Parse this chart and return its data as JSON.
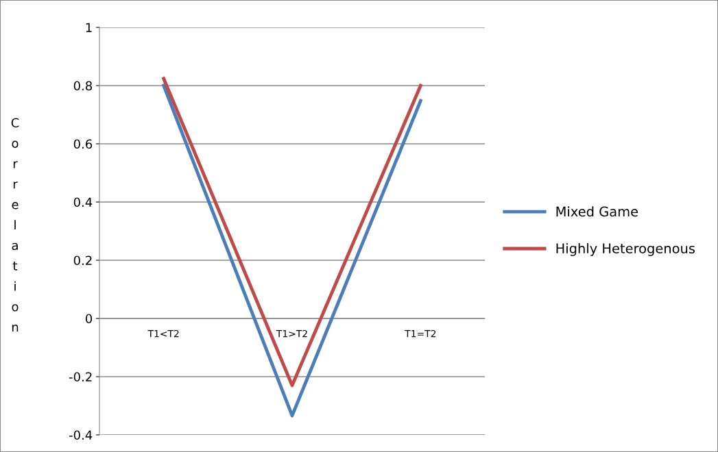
{
  "chart_data": {
    "type": "line",
    "ylabel": "Correlation",
    "categories": [
      "T1<T2",
      "T1>T2",
      "T1=T2"
    ],
    "series": [
      {
        "name": "Mixed Game",
        "color": "#4a7ebb",
        "values": [
          0.8,
          -0.334,
          0.748
        ]
      },
      {
        "name": "Highly Heterogenous",
        "color": "#be4b48",
        "values": [
          0.824,
          -0.23,
          0.8
        ]
      }
    ],
    "ylim": [
      -0.4,
      1
    ],
    "yticks": [
      -0.4,
      -0.2,
      0,
      0.2,
      0.4,
      0.6,
      0.8,
      1
    ],
    "grid": "y",
    "legend": "right",
    "marker": "none",
    "line_style": "solid"
  }
}
